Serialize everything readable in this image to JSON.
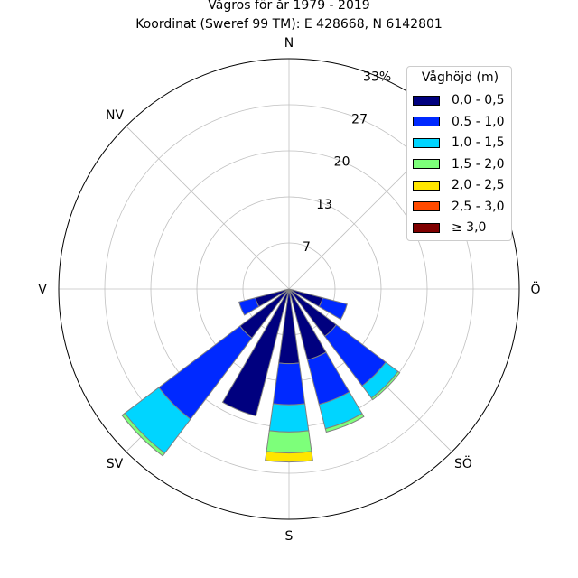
{
  "title": [
    "Vågros för år 1979 - 2019",
    "Koordinat (Sweref 99 TM): E 428668, N 6142801"
  ],
  "chart_data": {
    "type": "polar-stacked-bar",
    "title": "Vågros för år 1979 - 2019",
    "subtitle": "Koordinat (Sweref 99 TM): E 428668, N 6142801",
    "radial_max": 33,
    "radial_ticks": [
      "7",
      "13",
      "20",
      "27",
      "33%"
    ],
    "radial_tick_values": [
      6.6,
      13.2,
      19.8,
      26.4,
      33
    ],
    "direction_labels": [
      "N",
      "NV",
      "V",
      "SV",
      "S",
      "SÖ",
      "Ö"
    ],
    "direction_label_angles": [
      0,
      315,
      270,
      225,
      180,
      135,
      90
    ],
    "grid": true,
    "legend": {
      "title": "Våghöjd (m)",
      "position": "top-right",
      "entries": [
        "0,0 - 0,5",
        "0,5 - 1,0",
        "1,0 - 1,5",
        "1,5 - 2,0",
        "2,0 - 2,5",
        "2,5 - 3,0",
        "≥ 3,0"
      ]
    },
    "colors": [
      "#00007f",
      "#0029ff",
      "#00d5ff",
      "#7dff7a",
      "#ffe600",
      "#ff4a00",
      "#7f0000"
    ],
    "sectors": [
      {
        "direction": 112.5,
        "values": [
          5.0,
          3.6,
          0,
          0,
          0,
          0,
          0
        ]
      },
      {
        "direction": 135,
        "values": [
          8.5,
          8.9,
          2.2,
          0.3,
          0,
          0,
          0
        ]
      },
      {
        "direction": 157.5,
        "values": [
          10.5,
          6.6,
          3.6,
          0.5,
          0,
          0,
          0
        ]
      },
      {
        "direction": 180,
        "values": [
          10.7,
          5.9,
          3.9,
          3.0,
          1.3,
          0,
          0
        ]
      },
      {
        "direction": 202.5,
        "values": [
          18.8,
          0,
          0,
          0,
          0,
          0,
          0
        ]
      },
      {
        "direction": 225,
        "values": [
          8.8,
          14.6,
          6.1,
          0.5,
          0,
          0,
          0
        ]
      },
      {
        "direction": 247.5,
        "values": [
          5.0,
          2.4,
          0,
          0,
          0,
          0,
          0
        ]
      }
    ]
  }
}
